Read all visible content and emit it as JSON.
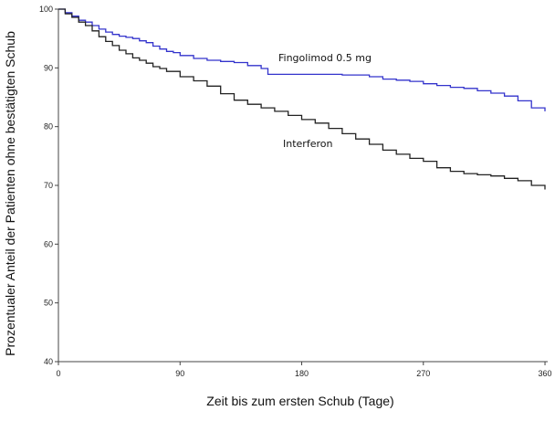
{
  "chart_data": {
    "type": "line",
    "xlabel": "Zeit bis zum ersten Schub (Tage)",
    "ylabel": "Prozentualer Anteil der Patienten ohne bestätigten Schub",
    "xlim": [
      0,
      362
    ],
    "ylim": [
      40,
      100
    ],
    "xticks": [
      0,
      90,
      180,
      270,
      360
    ],
    "yticks": [
      40,
      50,
      60,
      70,
      80,
      90,
      100
    ],
    "grid": false,
    "series": [
      {
        "name": "Fingolimod 0.5 mg",
        "color": "#3333cc",
        "x": [
          0,
          5,
          10,
          15,
          20,
          25,
          30,
          35,
          40,
          45,
          50,
          55,
          60,
          65,
          70,
          75,
          80,
          85,
          90,
          100,
          110,
          120,
          130,
          140,
          150,
          155,
          160,
          170,
          180,
          190,
          200,
          210,
          220,
          230,
          240,
          250,
          260,
          270,
          280,
          290,
          300,
          310,
          320,
          330,
          340,
          350,
          360
        ],
        "y": [
          100,
          99.4,
          98.8,
          98.1,
          97.8,
          97.2,
          96.6,
          96.1,
          95.7,
          95.4,
          95.2,
          95.0,
          94.6,
          94.3,
          93.7,
          93.2,
          92.8,
          92.6,
          92.1,
          91.6,
          91.3,
          91.1,
          90.9,
          90.4,
          89.9,
          88.9,
          88.9,
          88.9,
          88.9,
          88.9,
          88.9,
          88.8,
          88.8,
          88.5,
          88.1,
          87.9,
          87.7,
          87.3,
          87.0,
          86.7,
          86.5,
          86.1,
          85.7,
          85.2,
          84.4,
          83.2,
          82.6
        ]
      },
      {
        "name": "Interferon",
        "color": "#222222",
        "x": [
          0,
          5,
          10,
          15,
          20,
          25,
          30,
          35,
          40,
          45,
          50,
          55,
          60,
          65,
          70,
          75,
          80,
          90,
          100,
          110,
          120,
          130,
          140,
          150,
          160,
          170,
          180,
          190,
          200,
          210,
          220,
          230,
          240,
          250,
          260,
          270,
          280,
          290,
          300,
          310,
          320,
          330,
          340,
          350,
          360
        ],
        "y": [
          100,
          99.2,
          98.6,
          97.8,
          97.2,
          96.3,
          95.3,
          94.5,
          93.8,
          93.0,
          92.4,
          91.7,
          91.3,
          90.8,
          90.2,
          89.9,
          89.4,
          88.5,
          87.8,
          86.9,
          85.6,
          84.5,
          83.8,
          83.2,
          82.6,
          81.9,
          81.2,
          80.6,
          79.7,
          78.8,
          77.9,
          77.0,
          76.0,
          75.3,
          74.6,
          74.1,
          73.0,
          72.4,
          72.0,
          71.8,
          71.6,
          71.2,
          70.8,
          70.0,
          69.3
        ]
      }
    ]
  }
}
